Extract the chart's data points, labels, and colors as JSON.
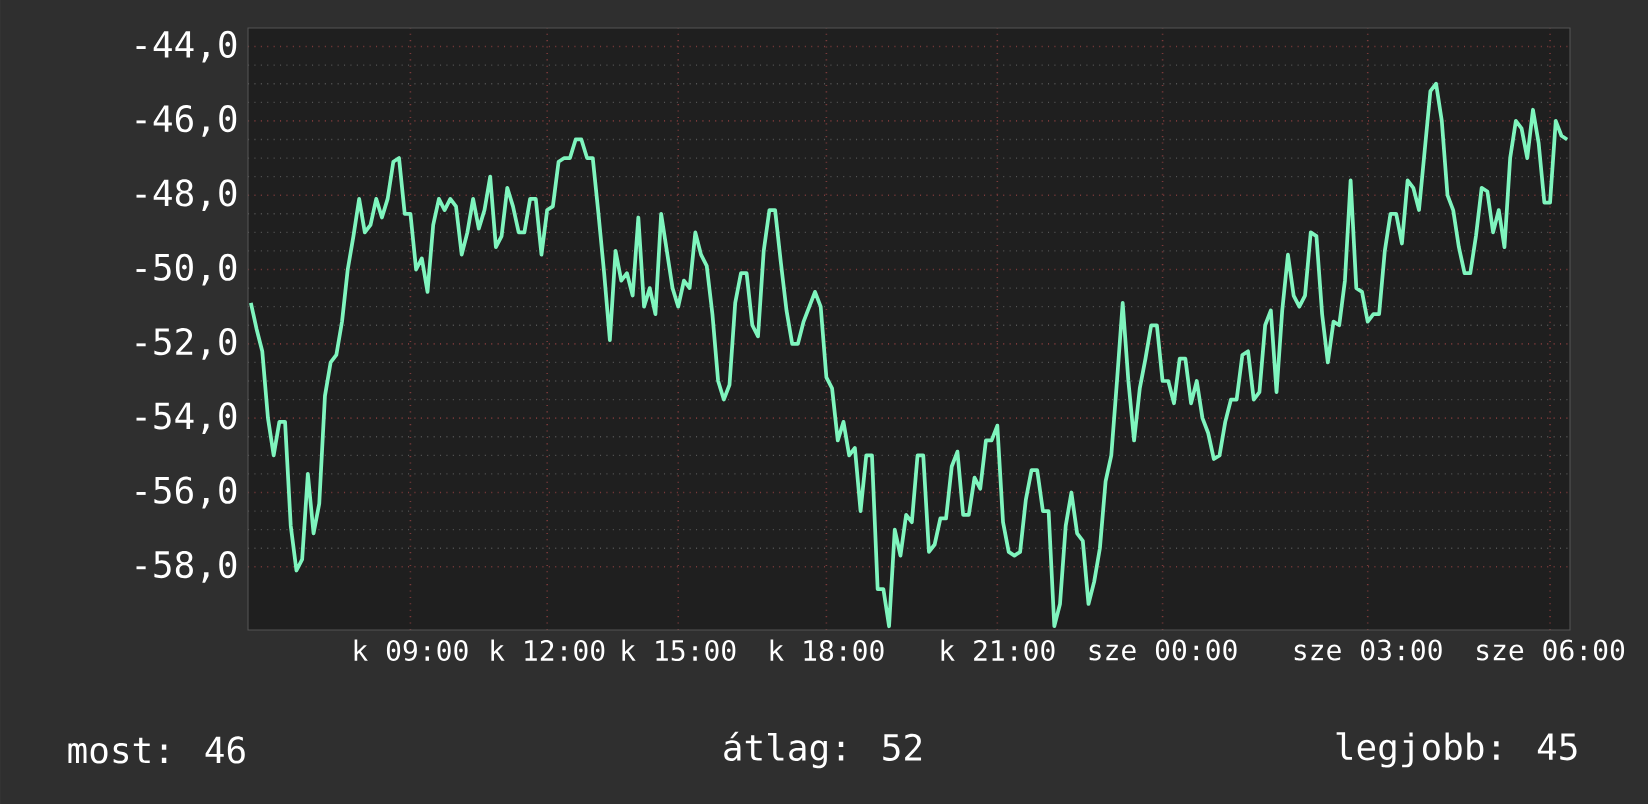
{
  "chart_data": {
    "type": "line",
    "categories": [
      null,
      null,
      null,
      null,
      null,
      null,
      null,
      null,
      null,
      null,
      null,
      null,
      null,
      null,
      null,
      null,
      null,
      null,
      null,
      null,
      null,
      null,
      null,
      null,
      null,
      null,
      null,
      null,
      "k 09:00",
      null,
      null,
      null,
      null,
      null,
      null,
      null,
      null,
      null,
      null,
      null,
      null,
      null,
      null,
      null,
      null,
      null,
      null,
      null,
      null,
      null,
      null,
      null,
      "k 12:00",
      null,
      null,
      null,
      null,
      null,
      null,
      null,
      null,
      null,
      null,
      null,
      null,
      null,
      null,
      null,
      null,
      null,
      null,
      null,
      null,
      null,
      null,
      "k 15:00",
      null,
      null,
      null,
      null,
      null,
      null,
      null,
      null,
      null,
      null,
      null,
      null,
      null,
      null,
      null,
      null,
      null,
      null,
      null,
      null,
      null,
      null,
      null,
      null,
      null,
      "k 18:00",
      null,
      null,
      null,
      null,
      null,
      null,
      null,
      null,
      null,
      null,
      null,
      null,
      null,
      null,
      null,
      null,
      null,
      null,
      null,
      null,
      null,
      null,
      null,
      null,
      null,
      null,
      null,
      null,
      null,
      "k 21:00",
      null,
      null,
      null,
      null,
      null,
      null,
      null,
      null,
      null,
      null,
      null,
      null,
      null,
      null,
      null,
      null,
      null,
      null,
      null,
      null,
      null,
      null,
      null,
      null,
      null,
      null,
      null,
      null,
      "sze 00:00",
      null,
      null,
      null,
      null,
      null,
      null,
      null,
      null,
      null,
      null,
      null,
      null,
      null,
      null,
      null,
      null,
      null,
      null,
      null,
      null,
      null,
      null,
      null,
      null,
      null,
      null,
      null,
      null,
      null,
      null,
      null,
      null,
      null,
      null,
      null,
      "sze 03:00",
      null,
      null,
      null,
      null,
      null,
      null,
      null,
      null,
      null,
      null,
      null,
      null,
      null,
      null,
      null,
      null,
      null,
      null,
      null,
      null,
      null,
      null,
      null,
      null,
      null,
      null,
      null,
      null,
      null,
      null,
      null,
      "sze 06:00",
      null,
      null,
      null
    ],
    "values": [
      -50.9,
      -51.6,
      -52.2,
      -54.0,
      -55.0,
      -54.1,
      -54.1,
      -56.9,
      -58.1,
      -57.8,
      -55.5,
      -57.1,
      -56.3,
      -53.4,
      -52.5,
      -52.3,
      -51.4,
      -50.0,
      -49.1,
      -48.1,
      -49.0,
      -48.8,
      -48.1,
      -48.6,
      -48.1,
      -47.1,
      -47.0,
      -48.5,
      -48.5,
      -50.0,
      -49.7,
      -50.6,
      -48.8,
      -48.1,
      -48.4,
      -48.1,
      -48.3,
      -49.6,
      -49.0,
      -48.1,
      -48.9,
      -48.4,
      -47.5,
      -49.4,
      -49.1,
      -47.8,
      -48.3,
      -49.0,
      -49.0,
      -48.1,
      -48.1,
      -49.6,
      -48.4,
      -48.3,
      -47.1,
      -47.0,
      -47.0,
      -46.5,
      -46.5,
      -47.0,
      -47.0,
      -48.5,
      -50.1,
      -51.9,
      -49.5,
      -50.3,
      -50.1,
      -50.7,
      -48.6,
      -51.0,
      -50.5,
      -51.2,
      -48.5,
      -49.5,
      -50.5,
      -51.0,
      -50.3,
      -50.5,
      -49.0,
      -49.6,
      -49.9,
      -51.2,
      -53.0,
      -53.5,
      -53.1,
      -50.9,
      -50.1,
      -50.1,
      -51.5,
      -51.8,
      -49.5,
      -48.4,
      -48.4,
      -49.8,
      -51.1,
      -52.0,
      -52.0,
      -51.4,
      -51.0,
      -50.6,
      -51.0,
      -52.9,
      -53.2,
      -54.6,
      -54.1,
      -55.0,
      -54.8,
      -56.5,
      -55.0,
      -55.0,
      -58.6,
      -58.6,
      -59.6,
      -57.0,
      -57.7,
      -56.6,
      -56.8,
      -55.0,
      -55.0,
      -57.6,
      -57.4,
      -56.7,
      -56.7,
      -55.3,
      -54.9,
      -56.6,
      -56.6,
      -55.6,
      -55.9,
      -54.6,
      -54.6,
      -54.2,
      -56.8,
      -57.6,
      -57.7,
      -57.6,
      -56.2,
      -55.4,
      -55.4,
      -56.5,
      -56.5,
      -59.6,
      -59.0,
      -56.9,
      -56.0,
      -57.1,
      -57.3,
      -59.0,
      -58.4,
      -57.5,
      -55.7,
      -55.0,
      -53.0,
      -50.9,
      -53.0,
      -54.6,
      -53.2,
      -52.4,
      -51.5,
      -51.5,
      -53.0,
      -53.0,
      -53.6,
      -52.4,
      -52.4,
      -53.6,
      -53.0,
      -54.0,
      -54.4,
      -55.1,
      -55.0,
      -54.1,
      -53.5,
      -53.5,
      -52.3,
      -52.2,
      -53.5,
      -53.3,
      -51.5,
      -51.1,
      -53.3,
      -51.1,
      -49.6,
      -50.7,
      -51.0,
      -50.7,
      -49.0,
      -49.1,
      -51.2,
      -52.5,
      -51.4,
      -51.5,
      -50.3,
      -47.6,
      -50.5,
      -50.6,
      -51.4,
      -51.2,
      -51.2,
      -49.5,
      -48.5,
      -48.5,
      -49.3,
      -47.6,
      -47.8,
      -48.4,
      -46.8,
      -45.2,
      -45.0,
      -46.0,
      -48.0,
      -48.4,
      -49.4,
      -50.1,
      -50.1,
      -49.1,
      -47.8,
      -47.9,
      -49.0,
      -48.4,
      -49.4,
      -47.0,
      -46.0,
      -46.2,
      -47.0,
      -45.7,
      -46.6,
      -48.2,
      -48.2,
      -46.0,
      -46.4,
      -46.5
    ],
    "color": "#7ff5be",
    "ylim": [
      -59.7,
      -43.5
    ],
    "yticks": [
      {
        "value": -44,
        "label": "-44,0"
      },
      {
        "value": -46,
        "label": "-46,0"
      },
      {
        "value": -48,
        "label": "-48,0"
      },
      {
        "value": -50,
        "label": "-50,0"
      },
      {
        "value": -52,
        "label": "-52,0"
      },
      {
        "value": -54,
        "label": "-54,0"
      },
      {
        "value": -56,
        "label": "-56,0"
      },
      {
        "value": -58,
        "label": "-58,0"
      }
    ],
    "grid": true,
    "annotations": [
      "most: 46",
      "átlag: 52",
      "legjobb: 45"
    ]
  }
}
